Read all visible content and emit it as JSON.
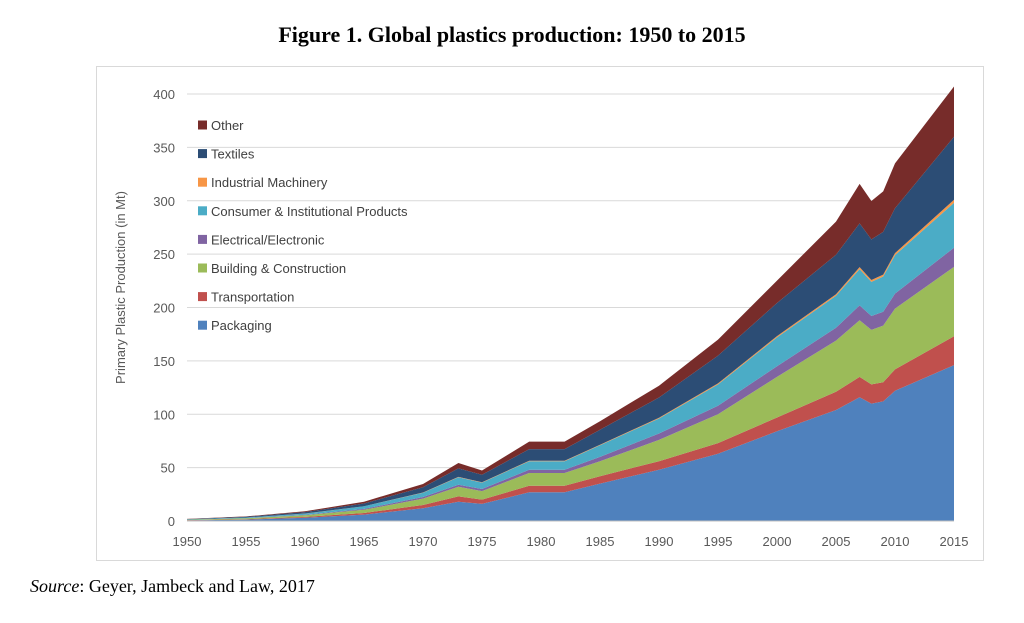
{
  "figure": {
    "title": "Figure 1. Global plastics production: 1950 to 2015",
    "source_label": "Source",
    "source_text": ": Geyer, Jambeck and Law, 2017"
  },
  "chart_data": {
    "type": "area",
    "stacked": true,
    "title": "Figure 1. Global plastics production: 1950 to 2015",
    "xlabel": "",
    "ylabel": "Primary Plastic Production (in Mt)",
    "xlim": [
      1950,
      2015
    ],
    "ylim": [
      0,
      400
    ],
    "x_ticks": [
      1950,
      1955,
      1960,
      1965,
      1970,
      1975,
      1980,
      1985,
      1990,
      1995,
      2000,
      2005,
      2010,
      2015
    ],
    "y_ticks": [
      0,
      50,
      100,
      150,
      200,
      250,
      300,
      350,
      400
    ],
    "grid": "horizontal",
    "legend_position": "top-left",
    "x": [
      1950,
      1955,
      1960,
      1965,
      1970,
      1973,
      1975,
      1979,
      1982,
      1985,
      1990,
      1995,
      2000,
      2005,
      2007,
      2008,
      2009,
      2010,
      2015
    ],
    "series": [
      {
        "name": "Packaging",
        "color": "#4f81bd",
        "values": [
          0.6,
          1.3,
          3,
          6,
          12,
          18,
          16,
          27,
          27,
          35,
          48,
          63,
          84,
          104,
          116,
          110,
          112,
          122,
          146
        ]
      },
      {
        "name": "Transportation",
        "color": "#c0504d",
        "values": [
          0.2,
          0.4,
          0.8,
          1.5,
          3,
          5,
          4,
          6,
          6,
          7,
          8,
          10,
          13,
          17,
          19,
          18,
          18,
          20,
          27
        ]
      },
      {
        "name": "Building & Construction",
        "color": "#9bbb59",
        "values": [
          0.3,
          0.8,
          1.5,
          3,
          6,
          9,
          8,
          12,
          12,
          14,
          20,
          27,
          38,
          48,
          53,
          51,
          53,
          57,
          65
        ]
      },
      {
        "name": "Electrical/Electronic",
        "color": "#8064a2",
        "values": [
          0.1,
          0.2,
          0.4,
          0.8,
          1.5,
          2,
          2,
          3,
          3,
          4,
          6,
          8,
          10,
          12,
          14,
          13,
          13,
          14,
          18
        ]
      },
      {
        "name": "Consumer & Institutional Products",
        "color": "#4bacc6",
        "values": [
          0.3,
          0.6,
          1.2,
          2.5,
          4,
          7,
          6,
          8,
          8,
          11,
          14,
          20,
          27,
          30,
          34,
          32,
          33,
          36,
          42
        ]
      },
      {
        "name": "Industrial Machinery",
        "color": "#f79646",
        "values": [
          0,
          0,
          0.1,
          0.1,
          0.2,
          0.3,
          0.3,
          0.4,
          0.4,
          0.5,
          0.7,
          0.9,
          1.2,
          1.5,
          1.8,
          1.8,
          1.8,
          2,
          3
        ]
      },
      {
        "name": "Textiles",
        "color": "#2c4d75",
        "values": [
          0.3,
          0.6,
          1.3,
          2.5,
          5,
          8,
          7,
          11,
          11,
          14,
          19,
          26,
          31,
          37,
          41,
          38,
          40,
          42,
          59
        ]
      },
      {
        "name": "Other",
        "color": "#772c2a",
        "values": [
          0.2,
          0.4,
          0.8,
          1.7,
          3,
          5,
          4,
          7,
          7,
          8,
          11,
          15,
          21,
          31,
          37,
          36,
          38,
          42,
          47
        ]
      }
    ]
  }
}
